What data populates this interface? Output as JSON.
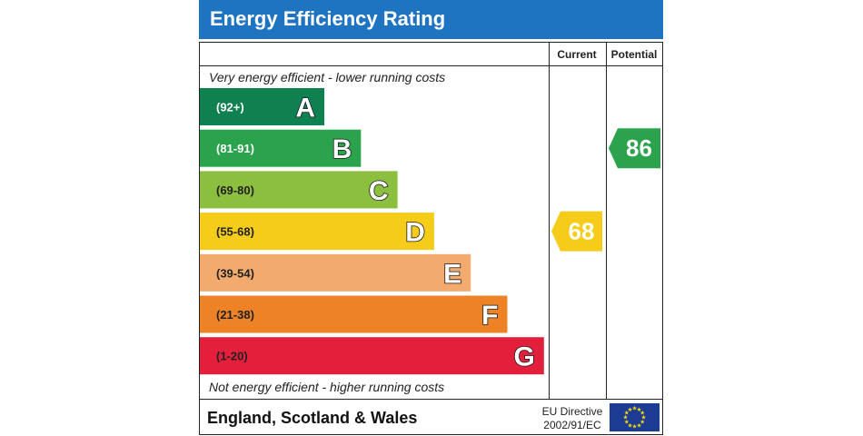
{
  "chart_data": {
    "type": "bar",
    "title": "Energy Efficiency Rating",
    "columns": {
      "current": "Current",
      "potential": "Potential"
    },
    "top_note": "Very energy efficient - lower running costs",
    "bottom_note": "Not energy efficient - higher running costs",
    "bands": [
      {
        "letter": "A",
        "range": "(92+)",
        "color": "#0f8050",
        "range_color": "#ffffff"
      },
      {
        "letter": "B",
        "range": "(81-91)",
        "color": "#2ba34c",
        "range_color": "#ffffff"
      },
      {
        "letter": "C",
        "range": "(69-80)",
        "color": "#8cbe3f",
        "range_color": "#222222"
      },
      {
        "letter": "D",
        "range": "(55-68)",
        "color": "#f5cc19",
        "range_color": "#222222"
      },
      {
        "letter": "E",
        "range": "(39-54)",
        "color": "#f2aa6e",
        "range_color": "#222222"
      },
      {
        "letter": "F",
        "range": "(21-38)",
        "color": "#ee8227",
        "range_color": "#222222"
      },
      {
        "letter": "G",
        "range": "(1-20)",
        "color": "#e41f3c",
        "range_color": "#222222"
      }
    ],
    "current": {
      "value": 68,
      "band": "D",
      "color": "#f5cc19"
    },
    "potential": {
      "value": 86,
      "band": "B",
      "color": "#2ba34c"
    },
    "footer": {
      "region": "England, Scotland & Wales",
      "directive_line1": "EU Directive",
      "directive_line2": "2002/91/EC"
    },
    "flag": {
      "name": "eu-flag-icon",
      "color": "#1c3c94",
      "star_color": "#ffdd00"
    }
  },
  "colors": {
    "title_bar": "#1e74c1",
    "border": "#222222"
  }
}
